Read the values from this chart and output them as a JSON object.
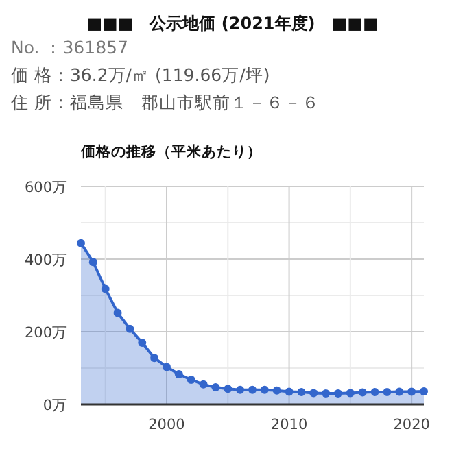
{
  "chart_data": {
    "type": "area",
    "title": "■■■　公示地価 (2021年度)　■■■",
    "subtitle": "価格の推移（平米あたり）",
    "annotations": [
      "No. ：361857",
      "価 格：36.2万/㎡ (119.66万/坪)",
      "住 所：福島県　郡山市駅前１－６－６"
    ],
    "x": [
      1993,
      1994,
      1995,
      1996,
      1997,
      1998,
      1999,
      2000,
      2001,
      2002,
      2003,
      2004,
      2005,
      2006,
      2007,
      2008,
      2009,
      2010,
      2011,
      2012,
      2013,
      2014,
      2015,
      2016,
      2017,
      2018,
      2019,
      2020,
      2021
    ],
    "series": [
      {
        "color": "#3366cc",
        "values": [
          444,
          392,
          318,
          252,
          208,
          170,
          128,
          103,
          83,
          68,
          55,
          47,
          43,
          40,
          40,
          40,
          38,
          35,
          34,
          31,
          30,
          30,
          31,
          33,
          34,
          34,
          35,
          35,
          36
        ]
      }
    ],
    "xlim": [
      1993,
      2021
    ],
    "xticks": [
      {
        "value": 1995,
        "label": null
      },
      2000,
      {
        "value": 2005,
        "label": null
      },
      2010,
      {
        "value": 2015,
        "label": null
      },
      2020
    ],
    "ylim": [
      0,
      600
    ],
    "yticks": [
      {
        "value": 0,
        "label": "0万"
      },
      {
        "value": 100,
        "label": null
      },
      {
        "value": 200,
        "label": "200万"
      },
      {
        "value": 300,
        "label": null
      },
      {
        "value": 400,
        "label": "400万"
      },
      {
        "value": 500,
        "label": null
      },
      {
        "value": 600,
        "label": "600万"
      }
    ],
    "grid": true,
    "marker": "circle"
  }
}
